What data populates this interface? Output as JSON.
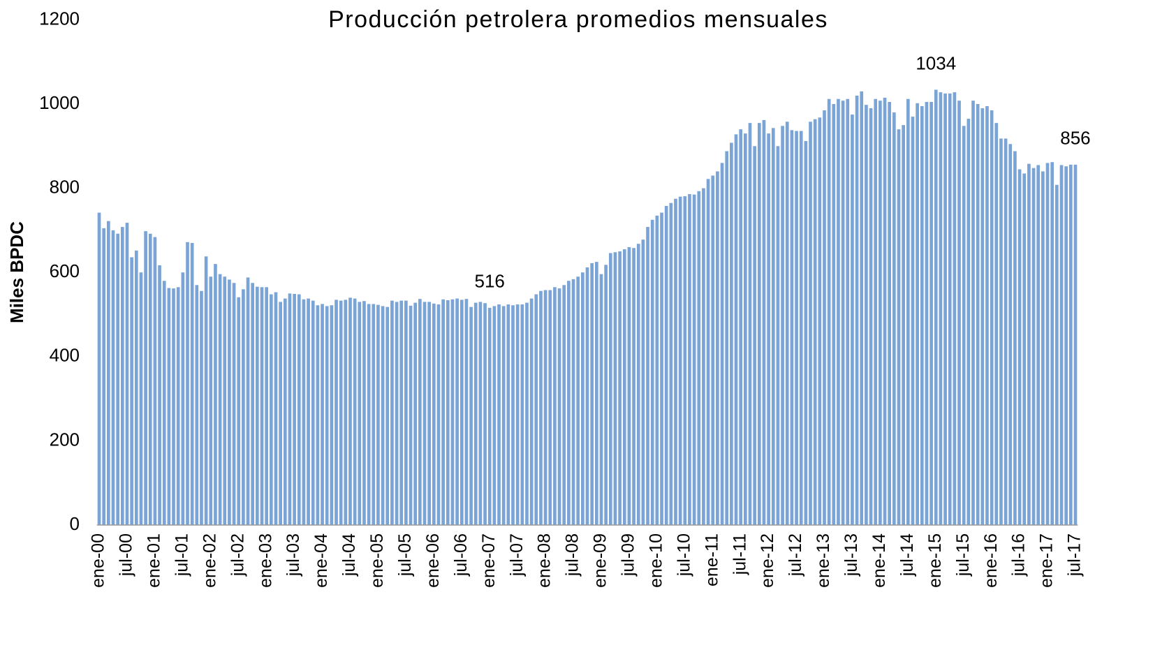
{
  "chart_data": {
    "type": "bar",
    "title": "Producción petrolera promedios mensuales",
    "y_label": "Miles BPDC",
    "color": "#7aa3d6",
    "ylim": [
      0,
      1200
    ],
    "yticks": [
      0,
      200,
      400,
      600,
      800,
      1000,
      1200
    ],
    "grid": false,
    "categories": [
      "ene-00",
      null,
      null,
      null,
      null,
      null,
      "jul-00",
      null,
      null,
      null,
      null,
      null,
      "ene-01",
      null,
      null,
      null,
      null,
      null,
      "jul-01",
      null,
      null,
      null,
      null,
      null,
      "ene-02",
      null,
      null,
      null,
      null,
      null,
      "jul-02",
      null,
      null,
      null,
      null,
      null,
      "ene-03",
      null,
      null,
      null,
      null,
      null,
      "jul-03",
      null,
      null,
      null,
      null,
      null,
      "ene-04",
      null,
      null,
      null,
      null,
      null,
      "jul-04",
      null,
      null,
      null,
      null,
      null,
      "ene-05",
      null,
      null,
      null,
      null,
      null,
      "jul-05",
      null,
      null,
      null,
      null,
      null,
      "ene-06",
      null,
      null,
      null,
      null,
      null,
      "jul-06",
      null,
      null,
      null,
      null,
      null,
      "ene-07",
      null,
      null,
      null,
      null,
      null,
      "jul-07",
      null,
      null,
      null,
      null,
      null,
      "ene-08",
      null,
      null,
      null,
      null,
      null,
      "jul-08",
      null,
      null,
      null,
      null,
      null,
      "ene-09",
      null,
      null,
      null,
      null,
      null,
      "jul-09",
      null,
      null,
      null,
      null,
      null,
      "ene-10",
      null,
      null,
      null,
      null,
      null,
      "jul-10",
      null,
      null,
      null,
      null,
      null,
      "ene-11",
      null,
      null,
      null,
      null,
      null,
      "jul-11",
      null,
      null,
      null,
      null,
      null,
      "ene-12",
      null,
      null,
      null,
      null,
      null,
      "jul-12",
      null,
      null,
      null,
      null,
      null,
      "ene-13",
      null,
      null,
      null,
      null,
      null,
      "jul-13",
      null,
      null,
      null,
      null,
      null,
      "ene-14",
      null,
      null,
      null,
      null,
      null,
      "jul-14",
      null,
      null,
      null,
      null,
      null,
      "ene-15",
      null,
      null,
      null,
      null,
      null,
      "jul-15",
      null,
      null,
      null,
      null,
      null,
      "ene-16",
      null,
      null,
      null,
      null,
      null,
      "jul-16",
      null,
      null,
      null,
      null,
      null,
      "ene-17",
      null,
      null,
      null,
      null,
      null,
      "jul-17"
    ],
    "values": [
      742,
      705,
      722,
      700,
      692,
      708,
      718,
      636,
      652,
      600,
      698,
      692,
      684,
      617,
      580,
      563,
      562,
      565,
      600,
      672,
      670,
      570,
      556,
      638,
      590,
      620,
      596,
      590,
      583,
      575,
      541,
      560,
      588,
      575,
      566,
      565,
      565,
      548,
      553,
      530,
      538,
      550,
      549,
      548,
      536,
      538,
      533,
      522,
      525,
      520,
      522,
      535,
      533,
      535,
      540,
      538,
      530,
      532,
      525,
      525,
      523,
      520,
      518,
      533,
      530,
      533,
      533,
      521,
      528,
      537,
      530,
      530,
      526,
      524,
      536,
      534,
      536,
      538,
      535,
      537,
      518,
      528,
      530,
      527,
      516,
      520,
      524,
      520,
      524,
      522,
      524,
      524,
      528,
      538,
      548,
      556,
      558,
      558,
      565,
      562,
      570,
      580,
      584,
      590,
      600,
      612,
      622,
      625,
      596,
      618,
      646,
      648,
      650,
      655,
      660,
      658,
      668,
      678,
      708,
      725,
      735,
      742,
      758,
      765,
      775,
      780,
      781,
      786,
      785,
      793,
      800,
      822,
      830,
      840,
      860,
      888,
      908,
      928,
      940,
      930,
      955,
      900,
      955,
      962,
      930,
      943,
      900,
      948,
      958,
      938,
      936,
      936,
      912,
      958,
      964,
      968,
      985,
      1012,
      1000,
      1012,
      1008,
      1012,
      975,
      1020,
      1030,
      998,
      990,
      1012,
      1008,
      1015,
      1005,
      980,
      940,
      950,
      1012,
      970,
      1002,
      995,
      1005,
      1005,
      1034,
      1028,
      1025,
      1025,
      1028,
      1008,
      948,
      965,
      1008,
      1000,
      990,
      995,
      985,
      955,
      918,
      918,
      905,
      888,
      845,
      835,
      858,
      848,
      855,
      840,
      860,
      862,
      808,
      855,
      852,
      856,
      856
    ],
    "value_labels": [
      null,
      null,
      null,
      null,
      null,
      null,
      null,
      null,
      null,
      null,
      null,
      null,
      null,
      null,
      null,
      null,
      null,
      null,
      null,
      null,
      null,
      null,
      null,
      null,
      null,
      null,
      null,
      null,
      null,
      null,
      null,
      null,
      null,
      null,
      null,
      null,
      null,
      null,
      null,
      null,
      null,
      null,
      null,
      null,
      null,
      null,
      null,
      null,
      null,
      null,
      null,
      null,
      null,
      null,
      null,
      null,
      null,
      null,
      null,
      null,
      null,
      null,
      null,
      null,
      null,
      null,
      null,
      null,
      null,
      null,
      null,
      null,
      null,
      null,
      null,
      null,
      null,
      null,
      null,
      null,
      null,
      null,
      null,
      null,
      "516",
      null,
      null,
      null,
      null,
      null,
      null,
      null,
      null,
      null,
      null,
      null,
      null,
      null,
      null,
      null,
      null,
      null,
      null,
      null,
      null,
      null,
      null,
      null,
      null,
      null,
      null,
      null,
      null,
      null,
      null,
      null,
      null,
      null,
      null,
      null,
      null,
      null,
      null,
      null,
      null,
      null,
      null,
      null,
      null,
      null,
      null,
      null,
      null,
      null,
      null,
      null,
      null,
      null,
      null,
      null,
      null,
      null,
      null,
      null,
      null,
      null,
      null,
      null,
      null,
      null,
      null,
      null,
      null,
      null,
      null,
      null,
      null,
      null,
      null,
      null,
      null,
      null,
      null,
      null,
      null,
      null,
      null,
      null,
      null,
      null,
      null,
      null,
      null,
      null,
      null,
      null,
      null,
      null,
      null,
      null,
      "1034",
      null,
      null,
      null,
      null,
      null,
      null,
      null,
      null,
      null,
      null,
      null,
      null,
      null,
      null,
      null,
      null,
      null,
      null,
      null,
      null,
      null,
      null,
      null,
      null,
      null,
      null,
      null,
      null,
      null,
      "856"
    ]
  }
}
